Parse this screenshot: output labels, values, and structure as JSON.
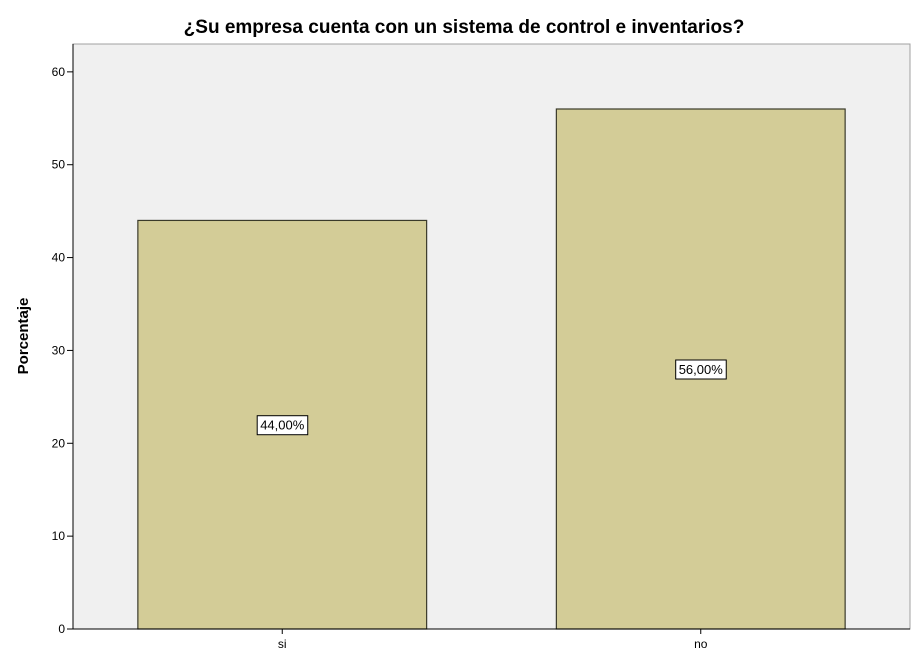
{
  "chart_data": {
    "type": "bar",
    "title": "¿Su empresa cuenta con un sistema de control e inventarios?",
    "xlabel": "",
    "ylabel": "Porcentaje",
    "categories": [
      "si",
      "no"
    ],
    "values": [
      44,
      56
    ],
    "data_labels": [
      "44,00%",
      "56,00%"
    ],
    "ylim": [
      0,
      63
    ],
    "yticks": [
      0,
      10,
      20,
      30,
      40,
      50,
      60
    ],
    "grid": false,
    "legend": "none",
    "colors": {
      "bar_fill": "#d3cc97",
      "bar_stroke": "#3a3a2a",
      "plot_background": "#f0f0f0",
      "axis": "#000000"
    }
  }
}
